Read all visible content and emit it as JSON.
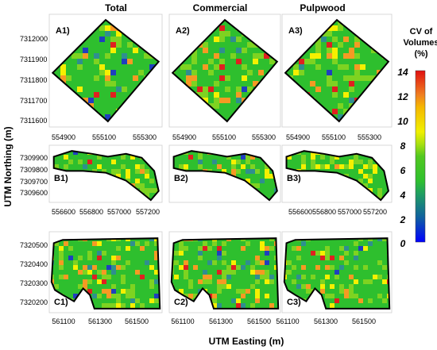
{
  "columns": [
    "Total",
    "Commercial",
    "Pulpwood"
  ],
  "rows": [
    {
      "panels": [
        "A1)",
        "A2)",
        "A3)"
      ],
      "y_ticks": [
        "7312000",
        "7311900",
        "7311800",
        "7311700",
        "7311600"
      ],
      "x_ticks": [
        "554900",
        "555100",
        "555300"
      ]
    },
    {
      "panels": [
        "B1)",
        "B2)",
        "B3)"
      ],
      "y_ticks": [
        "7309900",
        "7309800",
        "7309700",
        "7309600"
      ],
      "x_ticks": [
        "556600",
        "556800",
        "557000",
        "557200"
      ]
    },
    {
      "panels": [
        "C1)",
        "C2)",
        "C3)"
      ],
      "y_ticks": [
        "7320500",
        "7320400",
        "7320300",
        "7320200"
      ],
      "x_ticks": [
        "561100",
        "561300",
        "561500"
      ]
    }
  ],
  "axes": {
    "y_title": "UTM Northing (m)",
    "x_title": "UTM Easting (m)"
  },
  "colorbar": {
    "title_lines": [
      "CV of",
      "Volumes",
      "(%)"
    ],
    "ticks": [
      "14",
      "12",
      "10",
      "8",
      "6",
      "4",
      "2",
      "0"
    ],
    "range": [
      0,
      14
    ],
    "stops": [
      {
        "v": 0,
        "c": "#0000ff"
      },
      {
        "v": 2,
        "c": "#1060a0"
      },
      {
        "v": 4,
        "c": "#20a060"
      },
      {
        "v": 5,
        "c": "#2ec02e"
      },
      {
        "v": 7,
        "c": "#52c820"
      },
      {
        "v": 8,
        "c": "#a8e010"
      },
      {
        "v": 9,
        "c": "#f0f000"
      },
      {
        "v": 11,
        "c": "#f5b800"
      },
      {
        "v": 12,
        "c": "#f08020"
      },
      {
        "v": 14,
        "c": "#e01010"
      }
    ]
  },
  "colors": {
    "base_green": "#2ebf2e",
    "light_green": "#7ed321",
    "yellow": "#f5f000",
    "orange": "#f59a23",
    "red": "#e02020",
    "teal": "#2f8f8f",
    "blue": "#1f3fbf",
    "outline": "#000000"
  }
}
